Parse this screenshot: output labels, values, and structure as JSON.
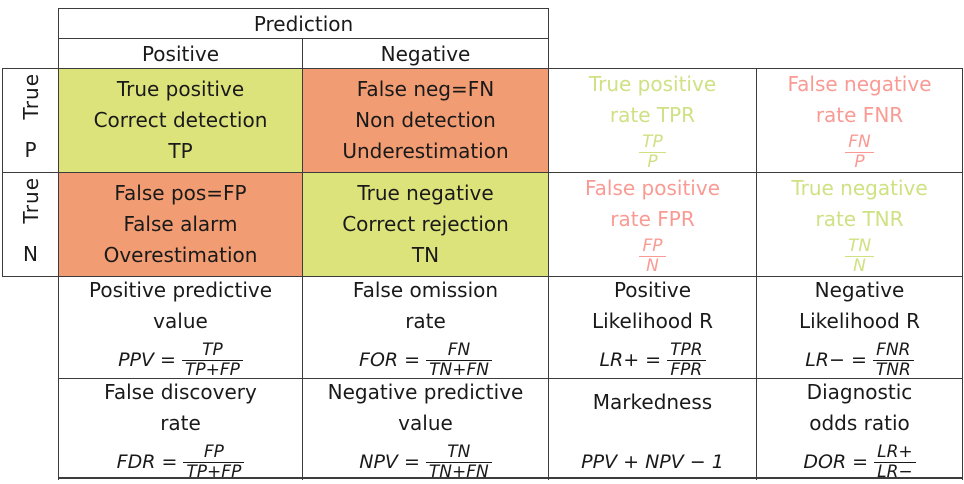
{
  "colors": {
    "green_bg": "#dde37b",
    "orange_bg": "#f19c72",
    "green_text": "#cfe183",
    "pink_text": "#f99b94",
    "border": "#3c3c3c",
    "text": "#1a1a1a"
  },
  "header": {
    "prediction": "Prediction",
    "positive": "Positive",
    "negative": "Negative"
  },
  "row_labels": [
    {
      "group": "True",
      "letter": "P"
    },
    {
      "group": "True",
      "letter": "N"
    }
  ],
  "cells": [
    [
      {
        "bg": "green",
        "lines": [
          "True positive",
          "Correct detection",
          "TP"
        ]
      },
      {
        "bg": "orange",
        "lines": [
          "False neg=FN",
          "Non detection",
          "Underestimation"
        ]
      },
      {
        "color": "green",
        "lines": [
          "True positive",
          "rate TPR"
        ],
        "frac": {
          "num": "TP",
          "den": "P"
        }
      },
      {
        "color": "pink",
        "lines": [
          "False negative",
          "rate FNR"
        ],
        "frac": {
          "num": "FN",
          "den": "P"
        }
      }
    ],
    [
      {
        "bg": "orange",
        "lines": [
          "False pos=FP",
          "False alarm",
          "Overestimation"
        ]
      },
      {
        "bg": "green",
        "lines": [
          "True negative",
          "Correct rejection",
          "TN"
        ]
      },
      {
        "color": "pink",
        "lines": [
          "False positive",
          "rate FPR"
        ],
        "frac": {
          "num": "FP",
          "den": "N"
        }
      },
      {
        "color": "green",
        "lines": [
          "True negative",
          "rate TNR"
        ],
        "frac": {
          "num": "TN",
          "den": "N"
        }
      }
    ],
    [
      {
        "lines": [
          "Positive predictive",
          "value"
        ],
        "formula": {
          "lhs": "PPV =",
          "num": "TP",
          "den": "TP+FP"
        }
      },
      {
        "lines": [
          "False omission",
          "rate"
        ],
        "formula": {
          "lhs": "FOR =",
          "num": "FN",
          "den": "TN+FN"
        }
      },
      {
        "lines": [
          "Positive",
          "Likelihood R"
        ],
        "formula": {
          "lhs": "LR+ =",
          "num": "TPR",
          "den": "FPR"
        }
      },
      {
        "lines": [
          "Negative",
          "Likelihood R"
        ],
        "formula": {
          "lhs": "LR− =",
          "num": "FNR",
          "den": "TNR"
        }
      }
    ],
    [
      {
        "lines": [
          "False discovery",
          "rate"
        ],
        "formula": {
          "lhs": "FDR =",
          "num": "FP",
          "den": "TP+FP"
        }
      },
      {
        "lines": [
          "Negative predictive",
          "value"
        ],
        "formula": {
          "lhs": "NPV =",
          "num": "TN",
          "den": "TN+FN"
        }
      },
      {
        "lines": [
          "Markedness",
          ""
        ],
        "formula": {
          "text": "PPV + NPV − 1"
        }
      },
      {
        "lines": [
          "Diagnostic",
          "odds ratio"
        ],
        "formula": {
          "lhs": "DOR =",
          "num": "LR+",
          "den": "LR−"
        }
      }
    ]
  ]
}
